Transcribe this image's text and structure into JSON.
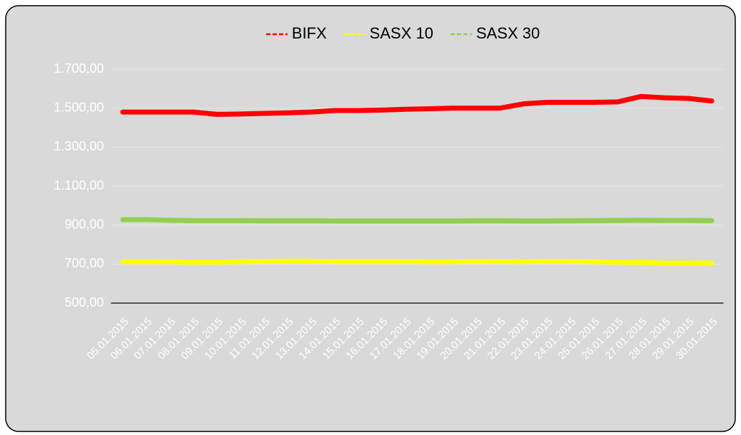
{
  "chart_data": {
    "type": "line",
    "categories": [
      "05.01.2015",
      "06.01.2015",
      "07.01.2015",
      "08.01.2015",
      "09.01.2015",
      "10.01.2015",
      "11.01.2015",
      "12.01.2015",
      "13.01.2015",
      "14.01.2015",
      "15.01.2015",
      "16.01.2015",
      "17.01.2015",
      "18.01.2015",
      "19.01.2015",
      "20.01.2015",
      "21.01.2015",
      "22.01.2015",
      "23.01.2015",
      "24.01.2015",
      "25.01.2015",
      "26.01.2015",
      "27.01.2015",
      "28.01.2015",
      "29.01.2015",
      "30.01.2015"
    ],
    "series": [
      {
        "name": "BIFX",
        "color": "#ff0000",
        "values": [
          1480,
          1480,
          1480,
          1480,
          1468,
          1470,
          1473,
          1476,
          1480,
          1488,
          1488,
          1490,
          1494,
          1497,
          1500,
          1500,
          1500,
          1522,
          1530,
          1530,
          1530,
          1532,
          1560,
          1553,
          1550,
          1537
        ]
      },
      {
        "name": "SASX 10",
        "color": "#ffff00",
        "values": [
          712,
          712,
          712,
          710,
          710,
          712,
          714,
          715,
          715,
          713,
          713,
          713,
          713,
          712,
          712,
          714,
          713,
          712,
          714,
          714,
          712,
          710,
          708,
          705,
          705,
          706
        ]
      },
      {
        "name": "SASX 30",
        "color": "#92d050",
        "values": [
          928,
          928,
          925,
          923,
          923,
          923,
          922,
          922,
          922,
          921,
          921,
          921,
          921,
          921,
          921,
          922,
          922,
          921,
          921,
          922,
          923,
          924,
          925,
          924,
          924,
          923
        ]
      }
    ],
    "ylim": [
      500,
      1700
    ],
    "yticks": [
      {
        "value": 500,
        "label": "500,00"
      },
      {
        "value": 700,
        "label": "700,00"
      },
      {
        "value": 900,
        "label": "900,00"
      },
      {
        "value": 1100,
        "label": "1.100,00"
      },
      {
        "value": 1300,
        "label": "1.300,00"
      },
      {
        "value": 1500,
        "label": "1.500,00"
      },
      {
        "value": 1700,
        "label": "1.700,00"
      }
    ],
    "grid": true,
    "legend": "top"
  }
}
